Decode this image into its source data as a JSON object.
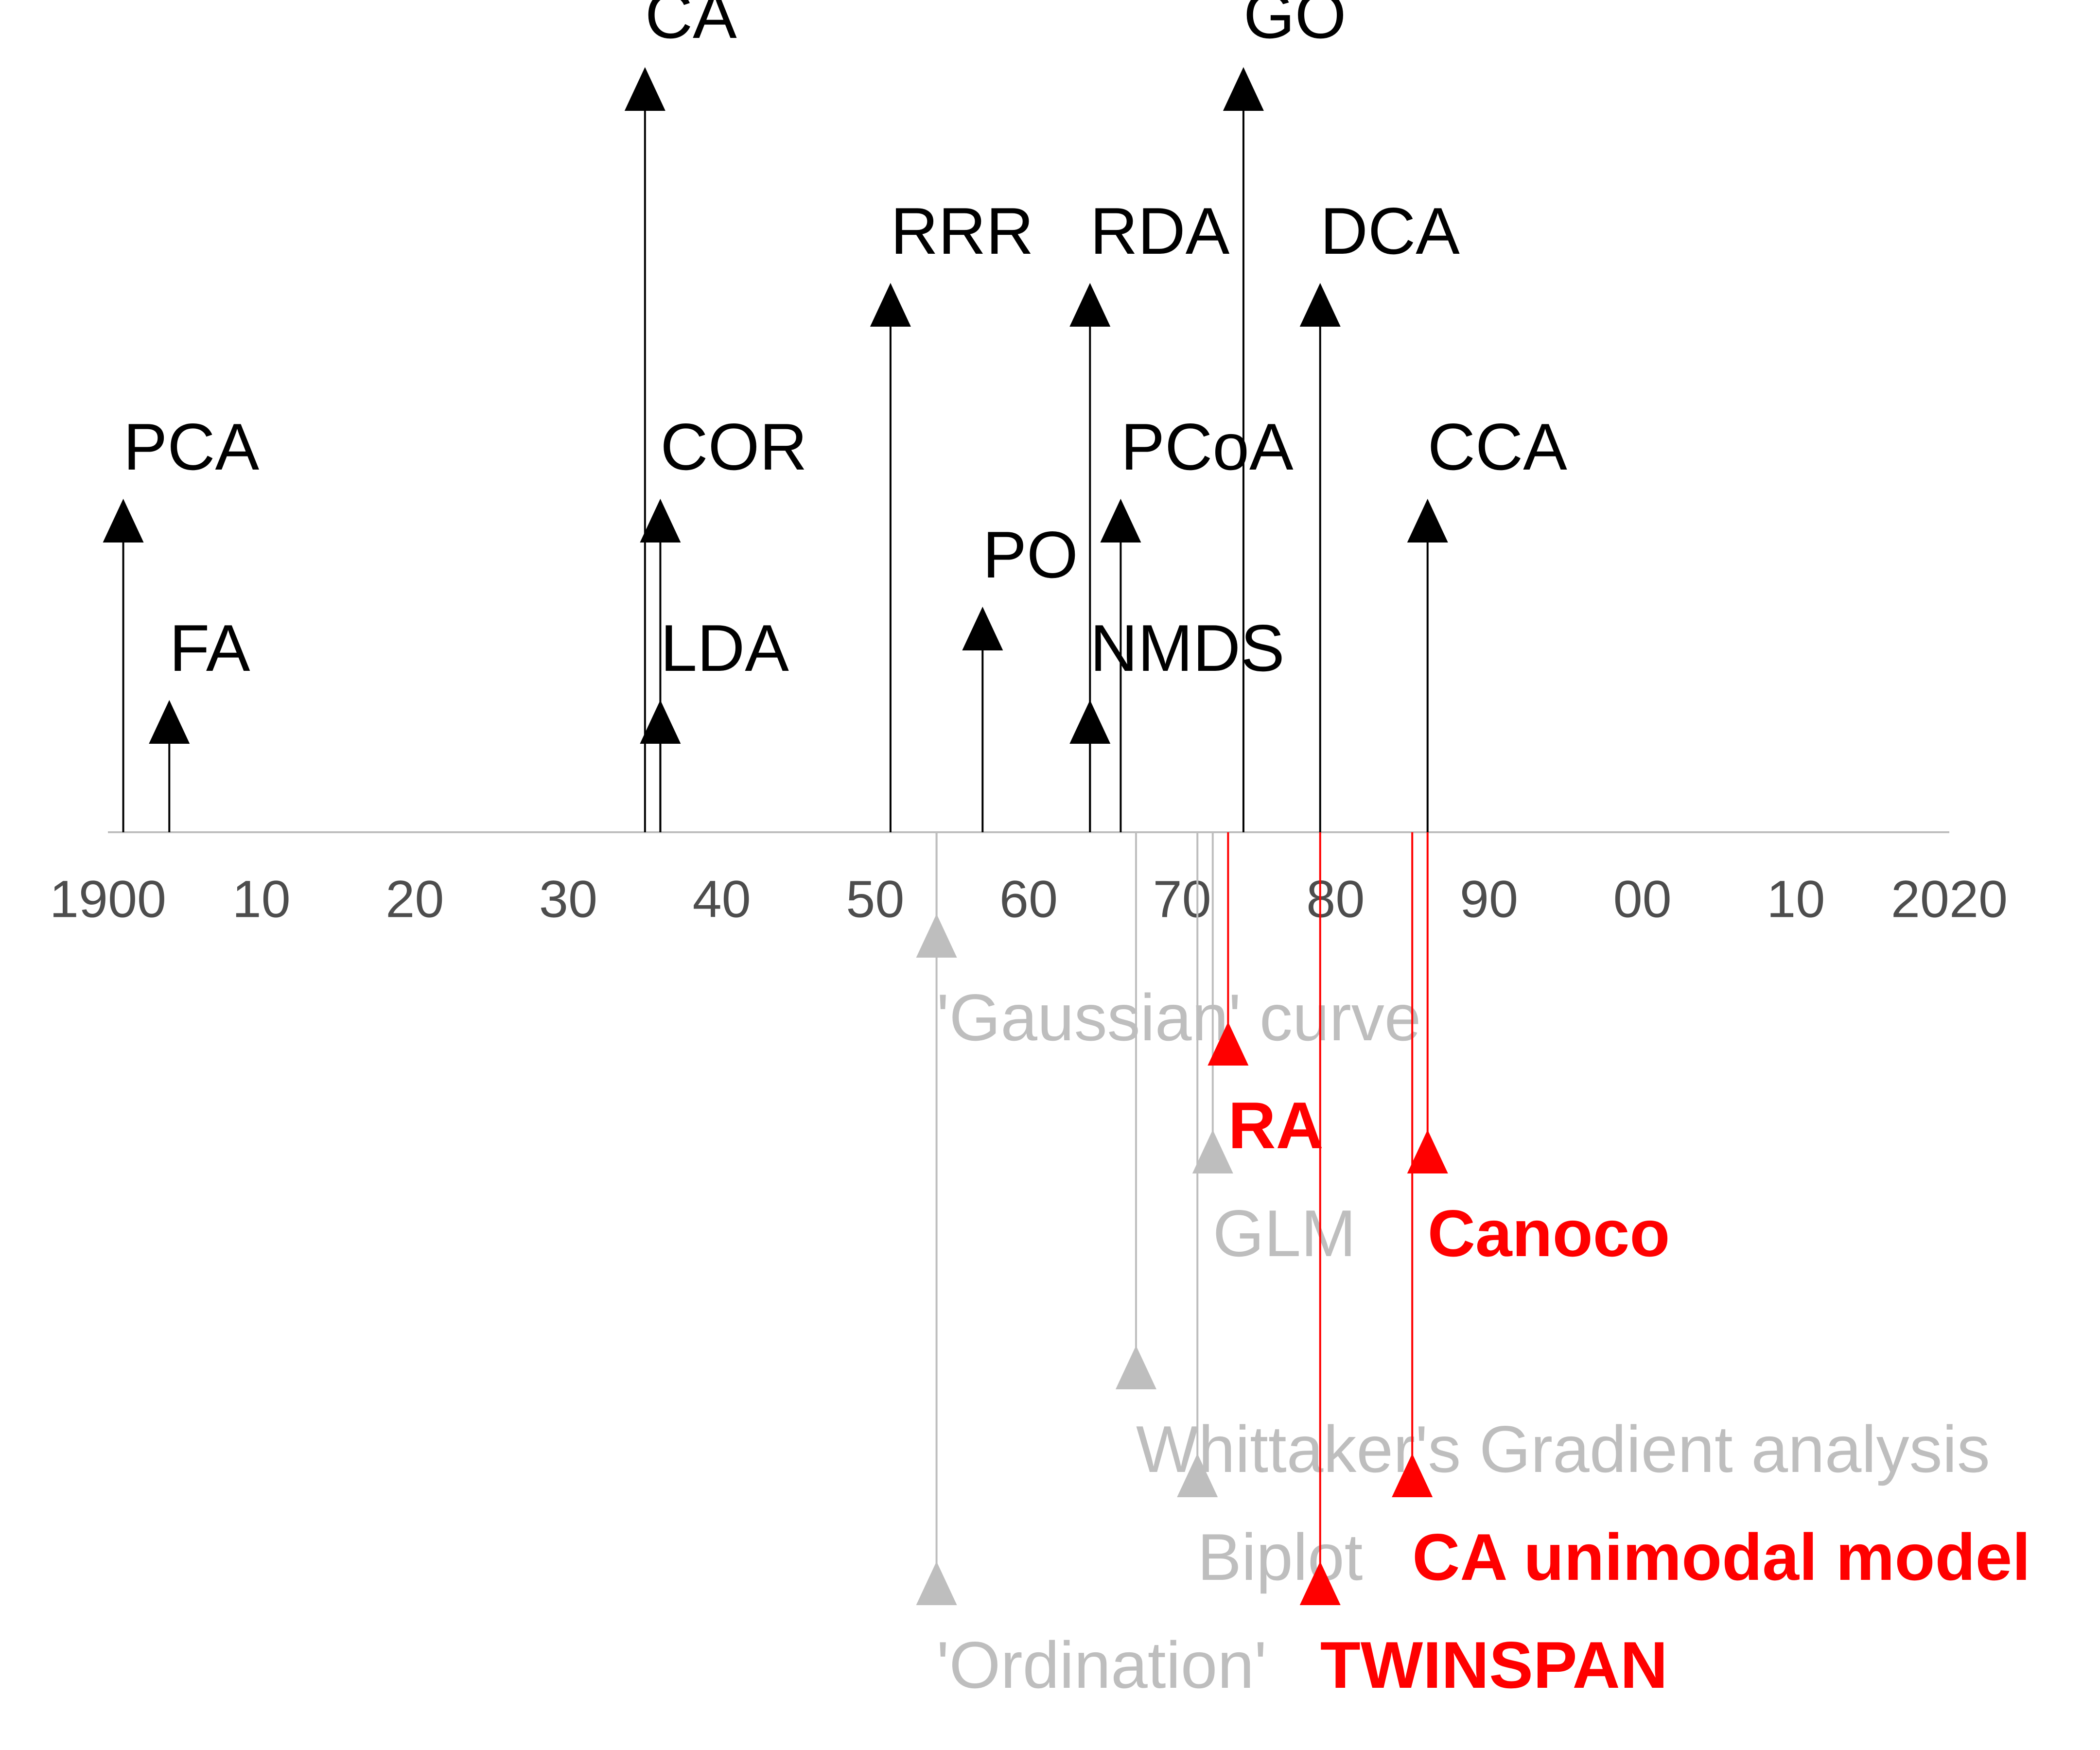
{
  "chart_data": {
    "type": "timeline",
    "xlim": [
      1900,
      2020
    ],
    "x_ticks": [
      {
        "year": 1900,
        "label": "1900"
      },
      {
        "year": 1910,
        "label": "10"
      },
      {
        "year": 1920,
        "label": "20"
      },
      {
        "year": 1930,
        "label": "30"
      },
      {
        "year": 1940,
        "label": "40"
      },
      {
        "year": 1950,
        "label": "50"
      },
      {
        "year": 1960,
        "label": "60"
      },
      {
        "year": 1970,
        "label": "70"
      },
      {
        "year": 1980,
        "label": "80"
      },
      {
        "year": 1990,
        "label": "90"
      },
      {
        "year": 2000,
        "label": "00"
      },
      {
        "year": 2010,
        "label": "10"
      },
      {
        "year": 2020,
        "label": "2020"
      }
    ],
    "colors": {
      "methods": "#000000",
      "concepts": "#bebebe",
      "software": "#ff0000",
      "axis": "#bebebe",
      "tick_text": "#4d4d4d"
    },
    "series": [
      {
        "group": "methods",
        "direction": "up",
        "events": [
          {
            "label": "PCA",
            "year": 1901,
            "level": 3
          },
          {
            "label": "FA",
            "year": 1904,
            "level": 1
          },
          {
            "label": "CA",
            "year": 1935,
            "level": 7
          },
          {
            "label": "COR",
            "year": 1936,
            "level": 3
          },
          {
            "label": "LDA",
            "year": 1936,
            "level": 1
          },
          {
            "label": "RRR",
            "year": 1951,
            "level": 5
          },
          {
            "label": "PO",
            "year": 1957,
            "level": 2
          },
          {
            "label": "RDA",
            "year": 1964,
            "level": 5
          },
          {
            "label": "NMDS",
            "year": 1964,
            "level": 1
          },
          {
            "label": "PCoA",
            "year": 1966,
            "level": 3
          },
          {
            "label": "GO",
            "year": 1974,
            "level": 7
          },
          {
            "label": "DCA",
            "year": 1979,
            "level": 5
          },
          {
            "label": "CCA",
            "year": 1986,
            "level": 3
          }
        ]
      },
      {
        "group": "concepts",
        "direction": "down",
        "events": [
          {
            "label": "'Gaussian' curve",
            "year": 1954,
            "level": 1
          },
          {
            "label": "GLM",
            "year": 1972,
            "level": 3
          },
          {
            "label": "Whittaker's Gradient analysis",
            "year": 1967,
            "level": 5
          },
          {
            "label": "Biplot",
            "year": 1971,
            "level": 6
          },
          {
            "label": "'Ordination'",
            "year": 1954,
            "level": 7
          }
        ]
      },
      {
        "group": "software",
        "direction": "down",
        "events": [
          {
            "label": "RA",
            "year": 1973,
            "level": 2
          },
          {
            "label": "Canoco",
            "year": 1986,
            "level": 3
          },
          {
            "label": "CA unimodal model",
            "year": 1985,
            "level": 6
          },
          {
            "label": "TWINSPAN",
            "year": 1979,
            "level": 7
          }
        ]
      }
    ]
  }
}
